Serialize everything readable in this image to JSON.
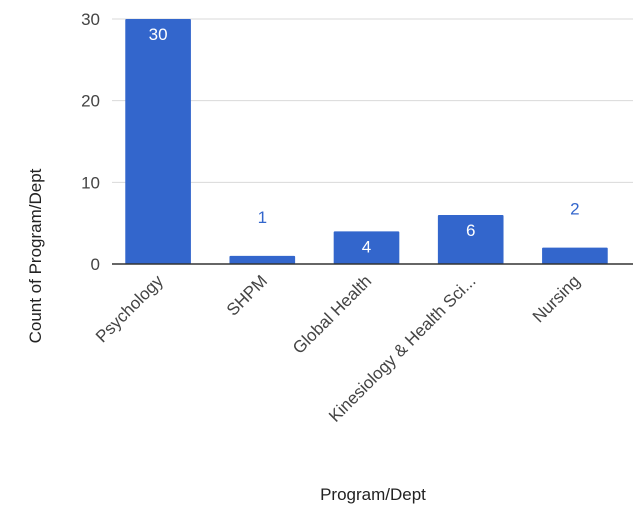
{
  "chart_data": {
    "type": "bar",
    "categories": [
      "Psychology",
      "SHPM",
      "Global Health",
      "Kinesiology & Health Sci...",
      "Nursing"
    ],
    "values": [
      30,
      1,
      4,
      6,
      2
    ],
    "data_labels": [
      "30",
      "1",
      "4",
      "6",
      "2"
    ],
    "xlabel": "Program/Dept",
    "ylabel": "Count of Program/Dept",
    "ylim": [
      0,
      30
    ],
    "yticks": [
      0,
      10,
      20,
      30
    ],
    "ytick_labels": [
      "0",
      "10",
      "20",
      "30"
    ],
    "grid": true,
    "legend": "none",
    "colors": {
      "bar": "#3366cc",
      "label_inside": "#ffffff",
      "label_outside": "#3366cc",
      "grid": "#d9d9d9",
      "baseline": "#333333"
    }
  }
}
